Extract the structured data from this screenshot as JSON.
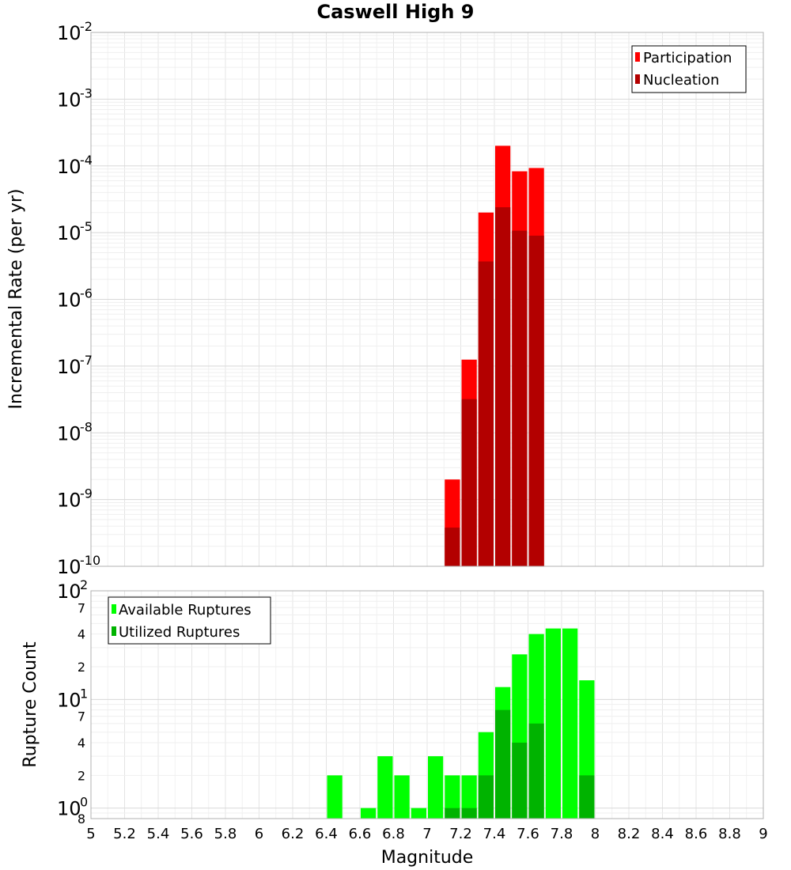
{
  "chart_data": [
    {
      "type": "bar",
      "title": "Caswell High 9",
      "xlabel": "",
      "ylabel": "Incremental Rate (per yr)",
      "xlim": [
        5,
        9
      ],
      "ylim": [
        1e-10,
        0.01
      ],
      "yscale": "log",
      "grid": true,
      "legend_position": "top-right",
      "bin_width": 0.1,
      "y_ticks": [
        {
          "base": "10",
          "exp": "-2"
        },
        {
          "base": "10",
          "exp": "-3"
        },
        {
          "base": "10",
          "exp": "-4"
        },
        {
          "base": "10",
          "exp": "-5"
        },
        {
          "base": "10",
          "exp": "-6"
        },
        {
          "base": "10",
          "exp": "-7"
        },
        {
          "base": "10",
          "exp": "-8"
        },
        {
          "base": "10",
          "exp": "-9"
        },
        {
          "base": "10",
          "exp": "-10"
        }
      ],
      "series": [
        {
          "name": "Participation",
          "color": "#ff0000",
          "x": [
            7.15,
            7.25,
            7.35,
            7.45,
            7.55,
            7.65
          ],
          "values": [
            2e-09,
            1.25e-07,
            2e-05,
            0.0002,
            8.3e-05,
            9.3e-05
          ]
        },
        {
          "name": "Nucleation",
          "color": "#b30000",
          "x": [
            7.15,
            7.25,
            7.35,
            7.45,
            7.55,
            7.65
          ],
          "values": [
            3.8e-10,
            3.2e-08,
            3.7e-06,
            2.4e-05,
            1.07e-05,
            9e-06
          ]
        }
      ]
    },
    {
      "type": "bar",
      "title": "",
      "xlabel": "Magnitude",
      "ylabel": "Rupture Count",
      "xlim": [
        5,
        9
      ],
      "ylim": [
        0.8,
        100
      ],
      "yscale": "log",
      "grid": true,
      "legend_position": "top-left",
      "bin_width": 0.1,
      "x_ticks": [
        "5",
        "5.2",
        "5.4",
        "5.6",
        "5.8",
        "6",
        "6.2",
        "6.4",
        "6.6",
        "6.8",
        "7",
        "7.2",
        "7.4",
        "7.6",
        "7.8",
        "8",
        "8.2",
        "8.4",
        "8.6",
        "8.8",
        "9"
      ],
      "y_ticks": [
        {
          "value": 100,
          "base": "10",
          "exp": "2"
        },
        {
          "value": 70,
          "label": "7"
        },
        {
          "value": 40,
          "label": "4"
        },
        {
          "value": 20,
          "label": "2"
        },
        {
          "value": 10,
          "base": "10",
          "exp": "1"
        },
        {
          "value": 7,
          "label": "7"
        },
        {
          "value": 4,
          "label": "4"
        },
        {
          "value": 2,
          "label": "2"
        },
        {
          "value": 1,
          "base": "10",
          "exp": "0"
        },
        {
          "value": 0.8,
          "label": "8"
        }
      ],
      "series": [
        {
          "name": "Available Ruptures",
          "color": "#00ff00",
          "x": [
            6.45,
            6.65,
            6.75,
            6.85,
            6.95,
            7.05,
            7.15,
            7.25,
            7.35,
            7.45,
            7.55,
            7.65,
            7.75,
            7.85,
            7.95
          ],
          "values": [
            2,
            1,
            3,
            2,
            1,
            3,
            2,
            2,
            5,
            13,
            26,
            40,
            45,
            45,
            15
          ]
        },
        {
          "name": "Utilized Ruptures",
          "color": "#00b300",
          "x": [
            7.15,
            7.25,
            7.35,
            7.45,
            7.55,
            7.65,
            7.95
          ],
          "values": [
            1,
            1,
            2,
            8,
            4,
            6,
            2
          ]
        }
      ]
    }
  ]
}
